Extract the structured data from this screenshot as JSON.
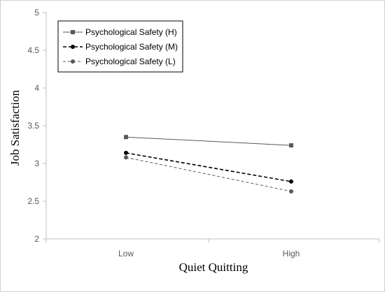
{
  "chart_data": {
    "type": "line",
    "title": "",
    "xlabel": "Quiet Quitting",
    "ylabel": "Job Satisfaction",
    "categories": [
      "Low",
      "High"
    ],
    "ylim": [
      2,
      5
    ],
    "yticks": [
      "2",
      "2.5",
      "3",
      "3.5",
      "4",
      "4.5",
      "5"
    ],
    "grid": false,
    "legend_position": "top-left",
    "series": [
      {
        "name": "Psychological Safety (H)",
        "values": [
          3.35,
          3.24
        ],
        "color": "#595959",
        "line_style": "solid",
        "marker": "square"
      },
      {
        "name": "Psychological Safety (M)",
        "values": [
          3.14,
          2.76
        ],
        "color": "#000000",
        "line_style": "dashed",
        "marker": "circle"
      },
      {
        "name": "Psychological Safety (L)",
        "values": [
          3.08,
          2.63
        ],
        "color": "#595959",
        "line_style": "dashed",
        "marker": "circle"
      }
    ]
  }
}
